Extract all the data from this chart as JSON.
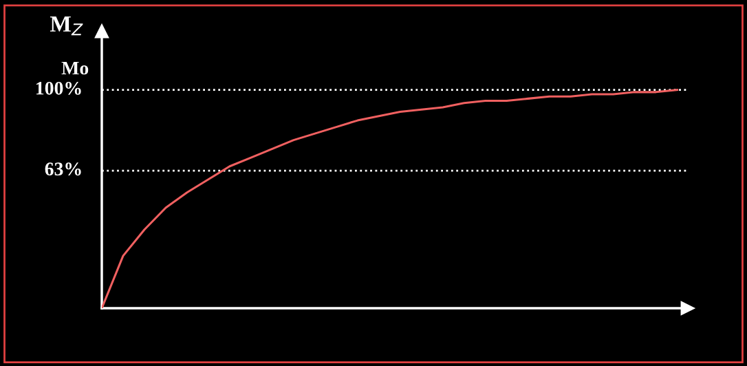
{
  "chart_data": {
    "type": "line",
    "ylabel": "M$_{Z}$",
    "categories": [
      null,
      null,
      null,
      null,
      null,
      null,
      null,
      null,
      null,
      null,
      null,
      null,
      null,
      null,
      null,
      null,
      null,
      null,
      null,
      null,
      null,
      null,
      null,
      null,
      null,
      null,
      null,
      null
    ],
    "series": [
      {
        "color": "#f06060",
        "values": [
          0,
          24,
          36,
          46,
          53,
          59,
          65,
          69,
          73,
          77,
          80,
          83,
          86,
          88,
          90,
          91,
          92,
          94,
          95,
          95,
          96,
          97,
          97,
          98,
          98,
          99,
          99,
          100
        ]
      }
    ],
    "ylim": [
      0,
      127
    ],
    "yticks": [
      {
        "value": 63,
        "label": "63%"
      },
      {
        "value": 100,
        "label": "100%"
      }
    ],
    "annotations": [
      "Mo"
    ],
    "ref_lines": [
      {
        "axis": "y",
        "value": 100,
        "color": "#ffffff",
        "line_style": "dotted"
      },
      {
        "axis": "y",
        "value": 63,
        "color": "#ffffff",
        "line_style": "dotted"
      }
    ],
    "grid": false,
    "legend": false,
    "marker": "none",
    "line_style": "solid"
  }
}
